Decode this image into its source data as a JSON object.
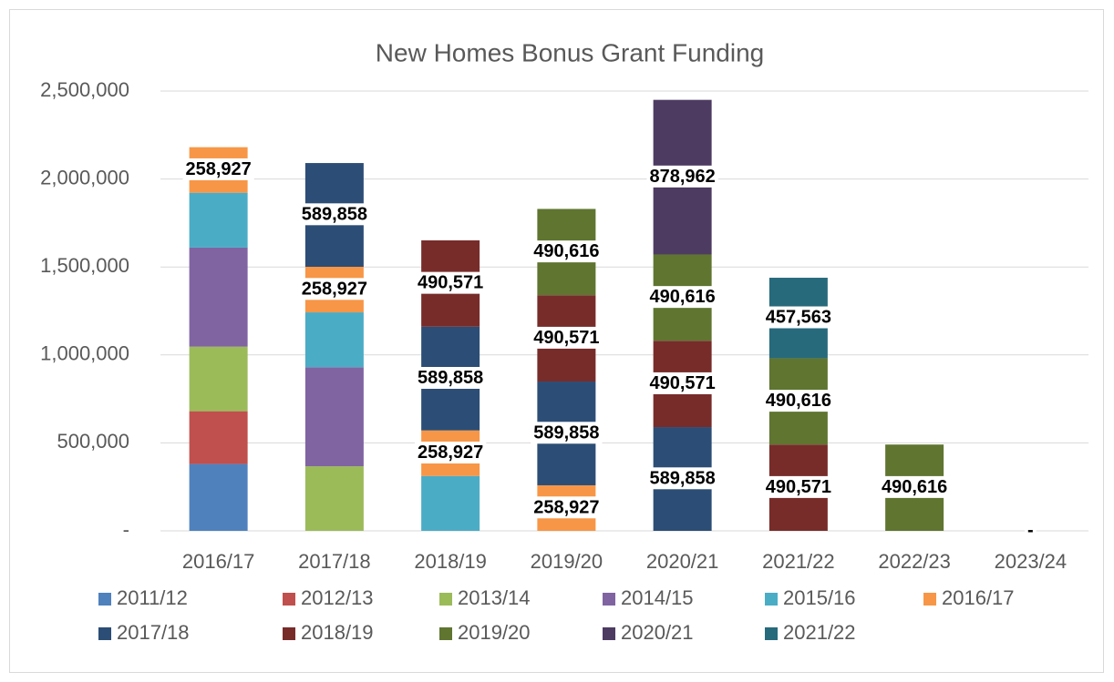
{
  "chart_data": {
    "type": "stacked_bar",
    "title": "New Homes Bonus Grant Funding",
    "categories": [
      "2016/17",
      "2017/18",
      "2018/19",
      "2019/20",
      "2020/21",
      "2021/22",
      "2022/23",
      "2023/24"
    ],
    "ylim": [
      0,
      2500000
    ],
    "yticks": [
      {
        "value": 0,
        "label": "-"
      },
      {
        "value": 500000,
        "label": "500,000"
      },
      {
        "value": 1000000,
        "label": "1,000,000"
      },
      {
        "value": 1500000,
        "label": "1,500,000"
      },
      {
        "value": 2000000,
        "label": "2,000,000"
      },
      {
        "value": 2500000,
        "label": "2,500,000"
      }
    ],
    "grid": true,
    "legend": "bottom",
    "series": [
      {
        "name": "2011/12",
        "color": "#4f81bd",
        "values": [
          380000,
          null,
          null,
          null,
          null,
          null,
          null,
          null
        ]
      },
      {
        "name": "2012/13",
        "color": "#c0504d",
        "values": [
          300000,
          null,
          null,
          null,
          null,
          null,
          null,
          null
        ]
      },
      {
        "name": "2013/14",
        "color": "#9bbb59",
        "values": [
          367000,
          367000,
          null,
          null,
          null,
          null,
          null,
          null
        ]
      },
      {
        "name": "2014/15",
        "color": "#8064a2",
        "values": [
          563000,
          563000,
          null,
          null,
          null,
          null,
          null,
          null
        ]
      },
      {
        "name": "2015/16",
        "color": "#4bacc6",
        "values": [
          312000,
          312000,
          312000,
          null,
          null,
          null,
          null,
          null
        ]
      },
      {
        "name": "2016/17",
        "color": "#f79646",
        "values": [
          258927,
          258927,
          258927,
          258927,
          null,
          null,
          null,
          null
        ],
        "value_labels": [
          "258,927",
          "258,927",
          "258,927",
          "258,927",
          null,
          null,
          null,
          null
        ]
      },
      {
        "name": "2017/18",
        "color": "#2c4d75",
        "values": [
          null,
          589858,
          589858,
          589858,
          589858,
          null,
          null,
          null
        ],
        "value_labels": [
          null,
          "589,858",
          "589,858",
          "589,858",
          "589,858",
          null,
          null,
          null
        ]
      },
      {
        "name": "2018/19",
        "color": "#772c2a",
        "values": [
          null,
          null,
          490571,
          490571,
          490571,
          490571,
          null,
          null
        ],
        "value_labels": [
          null,
          null,
          "490,571",
          "490,571",
          "490,571",
          "490,571",
          null,
          null
        ]
      },
      {
        "name": "2019/20",
        "color": "#5f7530",
        "values": [
          null,
          null,
          null,
          490616,
          490616,
          490616,
          490616,
          null
        ],
        "value_labels": [
          null,
          null,
          null,
          "490,616",
          "490,616",
          "490,616",
          "490,616",
          null
        ]
      },
      {
        "name": "2020/21",
        "color": "#4d3b62",
        "values": [
          null,
          null,
          null,
          null,
          878962,
          null,
          null,
          null
        ],
        "value_labels": [
          null,
          null,
          null,
          null,
          "878,962",
          null,
          null,
          null
        ]
      },
      {
        "name": "2021/22",
        "color": "#276a7c",
        "values": [
          null,
          null,
          null,
          null,
          null,
          457563,
          null,
          0
        ],
        "value_labels": [
          null,
          null,
          null,
          null,
          null,
          "457,563",
          null,
          "-"
        ]
      }
    ]
  }
}
